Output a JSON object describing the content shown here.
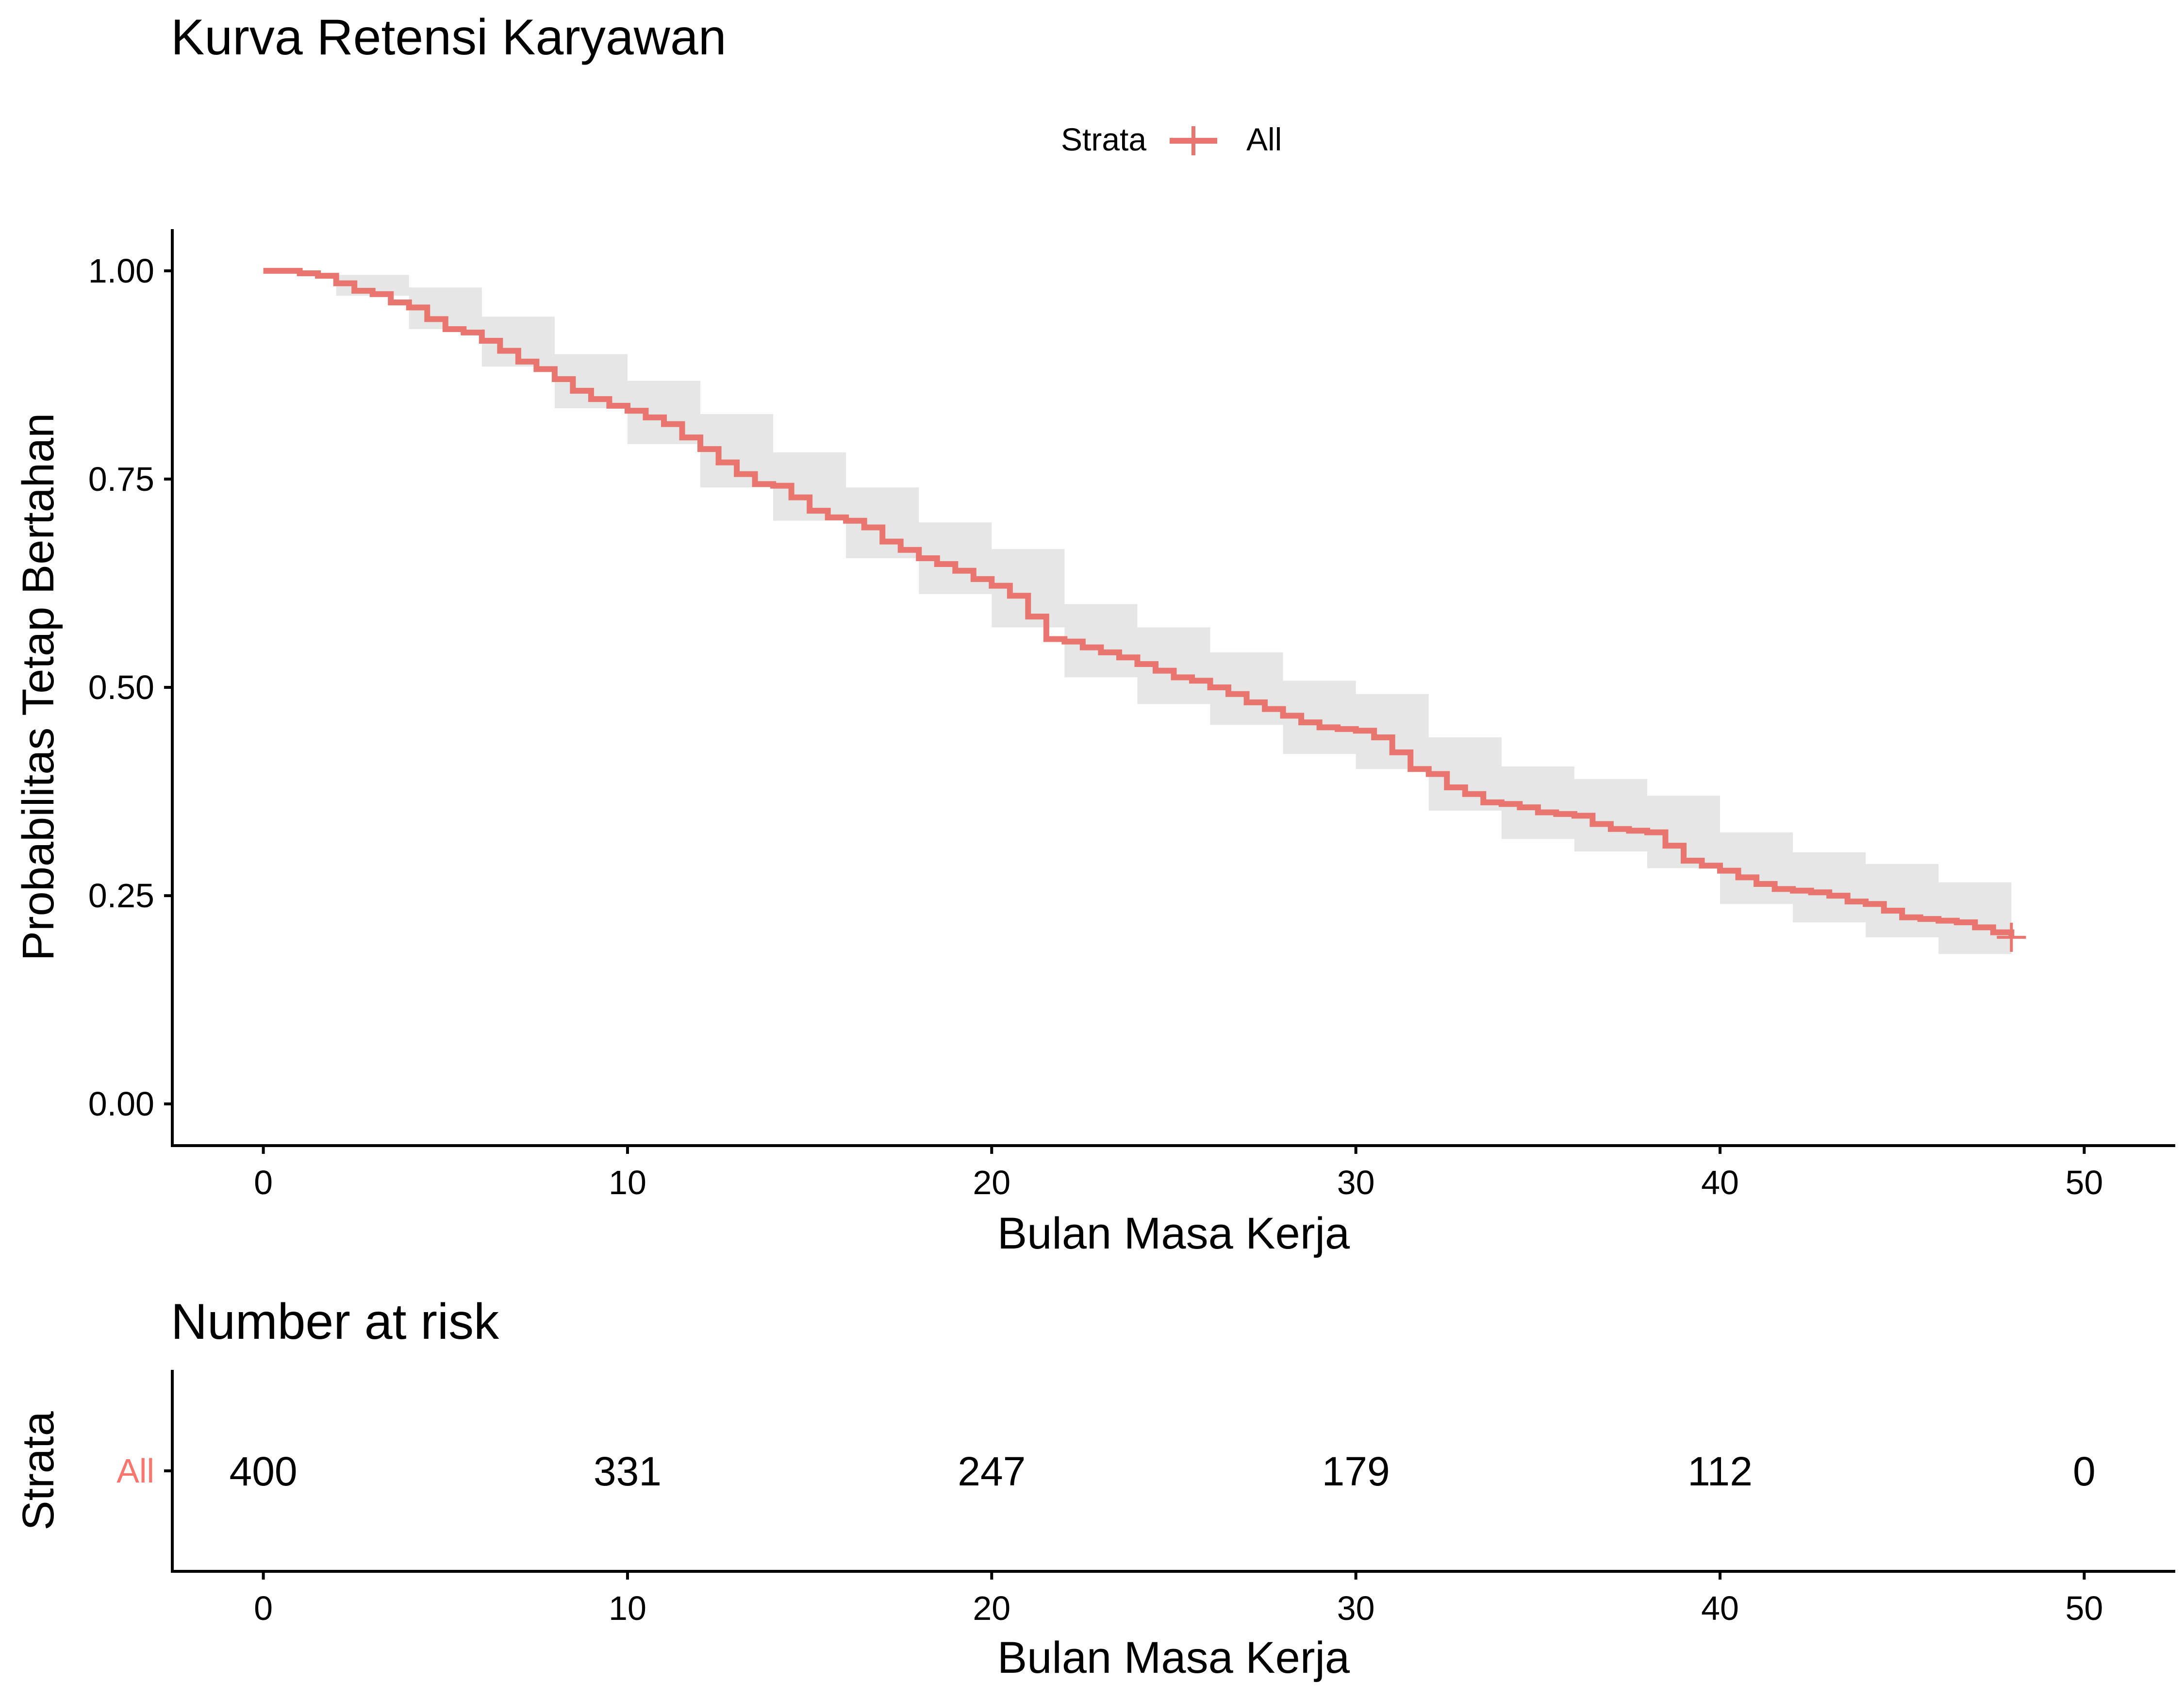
{
  "chart_data": [
    {
      "type": "line",
      "subtype": "kaplan-meier-step",
      "title": "Kurva Retensi Karyawan",
      "xlabel": "Bulan Masa Kerja",
      "ylabel": "Probabilitas Tetap Bertahan",
      "xlim": [
        -2.5,
        52.5
      ],
      "ylim": [
        -0.05,
        1.05
      ],
      "x_ticks": [
        0,
        10,
        20,
        30,
        40,
        50
      ],
      "y_ticks": [
        0.0,
        0.25,
        0.5,
        0.75,
        1.0
      ],
      "x_tick_labels": [
        "0",
        "10",
        "20",
        "30",
        "40",
        "50"
      ],
      "y_tick_labels": [
        "0.00",
        "0.25",
        "0.50",
        "0.75",
        "1.00"
      ],
      "grid": false,
      "legend": {
        "title": "Strata",
        "position": "top-center",
        "entries": [
          "All"
        ]
      },
      "series": [
        {
          "name": "All",
          "color": "#E8756E",
          "ci_color": "#E6E6E6",
          "censor_mark_at": [
            48,
            0.2
          ],
          "points": [
            [
              0,
              1.0
            ],
            [
              0.5,
              1.0
            ],
            [
              1,
              0.997
            ],
            [
              1.5,
              0.994
            ],
            [
              2,
              0.985
            ],
            [
              2.5,
              0.976
            ],
            [
              3,
              0.972
            ],
            [
              3.5,
              0.962
            ],
            [
              4,
              0.956
            ],
            [
              4.5,
              0.942
            ],
            [
              5,
              0.93
            ],
            [
              5.5,
              0.926
            ],
            [
              6,
              0.916
            ],
            [
              6.5,
              0.904
            ],
            [
              7,
              0.891
            ],
            [
              7.5,
              0.882
            ],
            [
              8,
              0.87
            ],
            [
              8.5,
              0.856
            ],
            [
              9,
              0.846
            ],
            [
              9.5,
              0.838
            ],
            [
              10,
              0.832
            ],
            [
              10.5,
              0.824
            ],
            [
              11,
              0.816
            ],
            [
              11.5,
              0.8
            ],
            [
              12,
              0.786
            ],
            [
              12.5,
              0.77
            ],
            [
              13,
              0.756
            ],
            [
              13.5,
              0.744
            ],
            [
              14,
              0.742
            ],
            [
              14.5,
              0.728
            ],
            [
              15,
              0.712
            ],
            [
              15.5,
              0.704
            ],
            [
              16,
              0.7
            ],
            [
              16.5,
              0.692
            ],
            [
              17,
              0.675
            ],
            [
              17.5,
              0.665
            ],
            [
              18,
              0.655
            ],
            [
              18.5,
              0.648
            ],
            [
              19,
              0.64
            ],
            [
              19.5,
              0.63
            ],
            [
              20,
              0.622
            ],
            [
              20.5,
              0.61
            ],
            [
              21,
              0.585
            ],
            [
              21.5,
              0.558
            ],
            [
              22,
              0.555
            ],
            [
              22.5,
              0.548
            ],
            [
              23,
              0.542
            ],
            [
              23.5,
              0.536
            ],
            [
              24,
              0.528
            ],
            [
              24.5,
              0.52
            ],
            [
              25,
              0.512
            ],
            [
              25.5,
              0.508
            ],
            [
              26,
              0.5
            ],
            [
              26.5,
              0.492
            ],
            [
              27,
              0.482
            ],
            [
              27.5,
              0.474
            ],
            [
              28,
              0.466
            ],
            [
              28.5,
              0.458
            ],
            [
              29,
              0.452
            ],
            [
              29.5,
              0.45
            ],
            [
              30,
              0.448
            ],
            [
              30.5,
              0.44
            ],
            [
              31,
              0.422
            ],
            [
              31.5,
              0.402
            ],
            [
              32,
              0.396
            ],
            [
              32.5,
              0.38
            ],
            [
              33,
              0.372
            ],
            [
              33.5,
              0.362
            ],
            [
              34,
              0.36
            ],
            [
              34.5,
              0.356
            ],
            [
              35,
              0.35
            ],
            [
              35.5,
              0.348
            ],
            [
              36,
              0.346
            ],
            [
              36.5,
              0.336
            ],
            [
              37,
              0.33
            ],
            [
              37.5,
              0.328
            ],
            [
              38,
              0.326
            ],
            [
              38.5,
              0.31
            ],
            [
              39,
              0.292
            ],
            [
              39.5,
              0.286
            ],
            [
              40,
              0.28
            ],
            [
              40.5,
              0.272
            ],
            [
              41,
              0.264
            ],
            [
              41.5,
              0.258
            ],
            [
              42,
              0.256
            ],
            [
              42.5,
              0.254
            ],
            [
              43,
              0.25
            ],
            [
              43.5,
              0.243
            ],
            [
              44,
              0.24
            ],
            [
              44.5,
              0.232
            ],
            [
              45,
              0.224
            ],
            [
              45.5,
              0.222
            ],
            [
              46,
              0.22
            ],
            [
              46.5,
              0.218
            ],
            [
              47,
              0.212
            ],
            [
              47.5,
              0.206
            ],
            [
              48,
              0.2
            ]
          ],
          "ci_upper": [
            [
              0,
              1.0
            ],
            [
              2,
              0.995
            ],
            [
              4,
              0.98
            ],
            [
              6,
              0.945
            ],
            [
              8,
              0.9
            ],
            [
              10,
              0.868
            ],
            [
              12,
              0.828
            ],
            [
              14,
              0.782
            ],
            [
              16,
              0.74
            ],
            [
              18,
              0.698
            ],
            [
              20,
              0.666
            ],
            [
              22,
              0.6
            ],
            [
              24,
              0.572
            ],
            [
              26,
              0.542
            ],
            [
              28,
              0.508
            ],
            [
              30,
              0.492
            ],
            [
              32,
              0.44
            ],
            [
              34,
              0.405
            ],
            [
              36,
              0.39
            ],
            [
              38,
              0.37
            ],
            [
              40,
              0.326
            ],
            [
              42,
              0.302
            ],
            [
              44,
              0.288
            ],
            [
              46,
              0.266
            ],
            [
              48,
              0.248
            ]
          ],
          "ci_lower": [
            [
              0,
              1.0
            ],
            [
              2,
              0.97
            ],
            [
              4,
              0.93
            ],
            [
              6,
              0.885
            ],
            [
              8,
              0.835
            ],
            [
              10,
              0.792
            ],
            [
              12,
              0.74
            ],
            [
              14,
              0.7
            ],
            [
              16,
              0.655
            ],
            [
              18,
              0.612
            ],
            [
              20,
              0.572
            ],
            [
              22,
              0.512
            ],
            [
              24,
              0.48
            ],
            [
              26,
              0.455
            ],
            [
              28,
              0.42
            ],
            [
              30,
              0.402
            ],
            [
              32,
              0.352
            ],
            [
              34,
              0.318
            ],
            [
              36,
              0.303
            ],
            [
              38,
              0.283
            ],
            [
              40,
              0.24
            ],
            [
              42,
              0.218
            ],
            [
              44,
              0.2
            ],
            [
              46,
              0.18
            ],
            [
              48,
              0.16
            ]
          ]
        }
      ]
    },
    {
      "type": "table",
      "title": "Number at risk",
      "xlabel": "Bulan Masa Kerja",
      "ylabel": "Strata",
      "xlim": [
        -2.5,
        52.5
      ],
      "x_ticks": [
        0,
        10,
        20,
        30,
        40,
        50
      ],
      "x_tick_labels": [
        "0",
        "10",
        "20",
        "30",
        "40",
        "50"
      ],
      "rows": [
        {
          "label": "All",
          "color": "#F8766D",
          "x": [
            0,
            10,
            20,
            30,
            40,
            50
          ],
          "values": [
            "400",
            "331",
            "247",
            "179",
            "112",
            "0"
          ]
        }
      ]
    }
  ]
}
